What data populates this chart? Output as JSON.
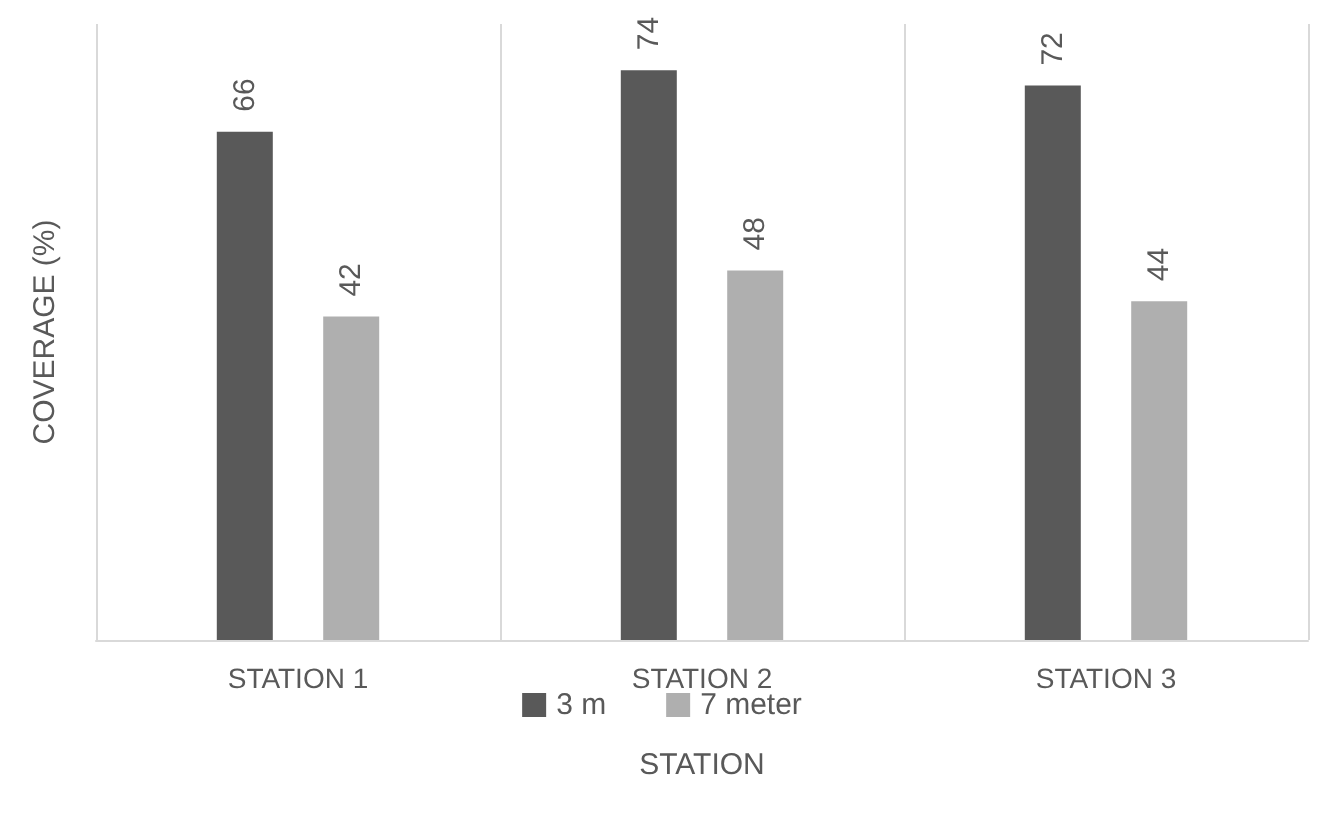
{
  "chart_data": {
    "type": "bar",
    "xlabel": "STATION",
    "ylabel": "COVERAGE (%)",
    "categories": [
      "STATION 1",
      "STATION 2",
      "STATION 3"
    ],
    "series": [
      {
        "name": "3 m",
        "color": "#595959",
        "values": [
          66,
          74,
          72
        ]
      },
      {
        "name": "7 meter",
        "color": "#afafaf",
        "values": [
          42,
          48,
          44
        ]
      }
    ],
    "data_labels": true,
    "grid": "x",
    "legend": "bottom"
  }
}
